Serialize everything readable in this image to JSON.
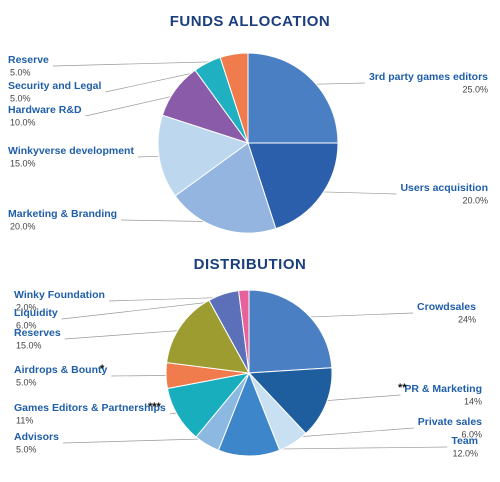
{
  "chart_data": [
    {
      "type": "pie",
      "title": "FUNDS ALLOCATION",
      "categories": [
        "3rd party games editors",
        "Users acquisition",
        "Marketing & Branding",
        "Winkyverse development",
        "Hardware R&D",
        "Security and Legal",
        "Reserve"
      ],
      "values": [
        25,
        20,
        20,
        15,
        10,
        5,
        5
      ],
      "value_labels": [
        "25.0%",
        "20.0%",
        "20.0%",
        "15.0%",
        "10.0%",
        "5.0%",
        "5.0%"
      ],
      "colors": [
        "#4a7fc4",
        "#2b5fab",
        "#93b5df",
        "#bdd7ef",
        "#8a5ba8",
        "#1fb1c2",
        "#f07b4c"
      ]
    },
    {
      "type": "pie",
      "title": "DISTRIBUTION",
      "categories": [
        "Crowdsales",
        "PR & Marketing",
        "Private sales",
        "Team",
        "Advisors",
        "Games Editors & Partnerships",
        "Airdrops & Bounty",
        "Reserves",
        "Liquidity",
        "Winky Foundation"
      ],
      "values": [
        24,
        14,
        6,
        12,
        5,
        11,
        5,
        15,
        6,
        2
      ],
      "value_labels": [
        "24%",
        "14%",
        "6.0%",
        "12.0%",
        "5.0%",
        "11%",
        "5.0%",
        "15.0%",
        "6.0%",
        "2.0%"
      ],
      "notes": [
        null,
        "**",
        null,
        null,
        null,
        "***",
        "*",
        null,
        null,
        null
      ],
      "colors": [
        "#4a7fc4",
        "#1f5e9e",
        "#c9e0f3",
        "#3c86c9",
        "#8cb9e1",
        "#18aebd",
        "#f07b4c",
        "#9d9c30",
        "#5b70b8",
        "#e8619b"
      ]
    }
  ]
}
